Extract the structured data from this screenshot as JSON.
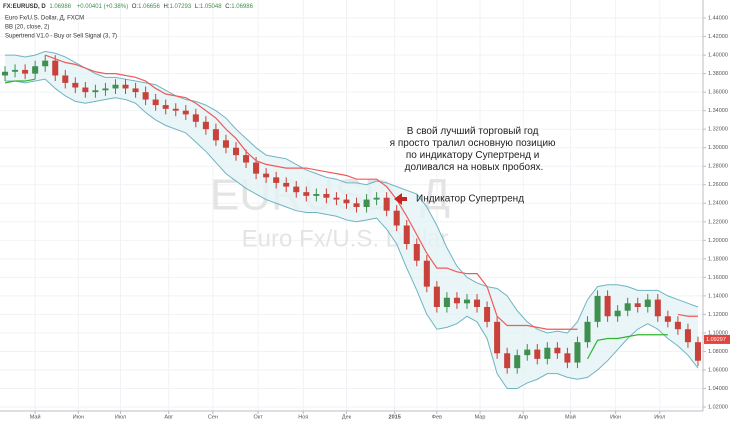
{
  "chart_data": {
    "type": "candlestick",
    "symbol": "FX:EURUSD, D",
    "last": 1.06986,
    "change": "+0.00401 (+0.38%)",
    "ohlc": [
      {
        "label": "O:",
        "value": 1.06656
      },
      {
        "label": "H:",
        "value": 1.07293
      },
      {
        "label": "L:",
        "value": 1.05048
      },
      {
        "label": "C:",
        "value": 1.06986
      }
    ],
    "legend_lines": [
      "Euro Fx/U.S. Dollar, Д, FXCM",
      "BB (20, close, 2)",
      "Supertrend V1.0 - Buy or Sell Signal (3, 7)"
    ],
    "watermark": [
      "EURUSD, Д",
      "Euro Fx/U.S. Dollar"
    ],
    "annotations": {
      "main": [
        "В свой лучший торговый год",
        "я просто тралил основную позицию",
        "по индикатору Супертренд и",
        "доливался на новых пробоях."
      ],
      "supertrend": "Индикатор Супертренд"
    },
    "grid": true,
    "xlim": [
      0,
      70
    ],
    "xticks": [
      {
        "value": 3.5,
        "label": "Май"
      },
      {
        "value": 7.8,
        "label": "Июн"
      },
      {
        "value": 12,
        "label": "Июл"
      },
      {
        "value": 16.8,
        "label": "Авг"
      },
      {
        "value": 21.2,
        "label": "Сен"
      },
      {
        "value": 25.7,
        "label": "Окт"
      },
      {
        "value": 30.2,
        "label": "Ноя"
      },
      {
        "value": 34.5,
        "label": "Дек"
      },
      {
        "value": 39.3,
        "label": "2015"
      },
      {
        "value": 43.5,
        "label": "Фев"
      },
      {
        "value": 47.8,
        "label": "Мар"
      },
      {
        "value": 52.1,
        "label": "Апр"
      },
      {
        "value": 56.8,
        "label": "Май"
      },
      {
        "value": 61.3,
        "label": "Июн"
      },
      {
        "value": 65.7,
        "label": "Июл"
      }
    ],
    "ylim": [
      1.0157,
      1.4595
    ],
    "yticks": [
      {
        "value": 1.02,
        "label": "1.02000"
      },
      {
        "value": 1.04,
        "label": "1.04000"
      },
      {
        "value": 1.06,
        "label": "1.06000"
      },
      {
        "value": 1.08,
        "label": "1.08000"
      },
      {
        "value": 1.1,
        "label": "1.10000"
      },
      {
        "value": 1.12,
        "label": "1.12000"
      },
      {
        "value": 1.14,
        "label": "1.14000"
      },
      {
        "value": 1.16,
        "label": "1.16000"
      },
      {
        "value": 1.18,
        "label": "1.18000"
      },
      {
        "value": 1.2,
        "label": "1.20000"
      },
      {
        "value": 1.22,
        "label": "1.22000"
      },
      {
        "value": 1.24,
        "label": "1.24000"
      },
      {
        "value": 1.26,
        "label": "1.26000"
      },
      {
        "value": 1.28,
        "label": "1.28000"
      },
      {
        "value": 1.3,
        "label": "1.30000"
      },
      {
        "value": 1.32,
        "label": "1.32000"
      },
      {
        "value": 1.34,
        "label": "1.34000"
      },
      {
        "value": 1.36,
        "label": "1.36000"
      },
      {
        "value": 1.38,
        "label": "1.38000"
      },
      {
        "value": 1.4,
        "label": "1.40000"
      },
      {
        "value": 1.42,
        "label": "1.42000"
      },
      {
        "value": 1.44,
        "label": "1.44000"
      }
    ],
    "last_price_label": 1.09297,
    "candles": {
      "up_color": "#3f8f4f",
      "down_color": "#c8413a",
      "open": [
        1.378,
        1.382,
        1.384,
        1.38,
        1.388,
        1.394,
        1.378,
        1.37,
        1.365,
        1.36,
        1.362,
        1.364,
        1.368,
        1.364,
        1.36,
        1.352,
        1.346,
        1.342,
        1.34,
        1.336,
        1.328,
        1.32,
        1.308,
        1.3,
        1.292,
        1.284,
        1.272,
        1.268,
        1.262,
        1.258,
        1.252,
        1.248,
        1.25,
        1.246,
        1.244,
        1.24,
        1.236,
        1.244,
        1.246,
        1.232,
        1.216,
        1.196,
        1.178,
        1.15,
        1.128,
        1.138,
        1.132,
        1.136,
        1.128,
        1.112,
        1.078,
        1.062,
        1.076,
        1.082,
        1.072,
        1.084,
        1.078,
        1.068,
        1.09,
        1.112,
        1.14,
        1.118,
        1.124,
        1.132,
        1.128,
        1.136,
        1.118,
        1.112,
        1.104,
        1.09
      ],
      "high": [
        1.388,
        1.39,
        1.39,
        1.394,
        1.4,
        1.4,
        1.384,
        1.376,
        1.371,
        1.368,
        1.37,
        1.374,
        1.374,
        1.37,
        1.366,
        1.358,
        1.352,
        1.348,
        1.346,
        1.342,
        1.334,
        1.326,
        1.314,
        1.306,
        1.298,
        1.29,
        1.278,
        1.274,
        1.268,
        1.264,
        1.258,
        1.256,
        1.256,
        1.252,
        1.25,
        1.246,
        1.25,
        1.252,
        1.252,
        1.238,
        1.222,
        1.202,
        1.184,
        1.156,
        1.144,
        1.144,
        1.142,
        1.142,
        1.134,
        1.118,
        1.084,
        1.082,
        1.088,
        1.088,
        1.09,
        1.09,
        1.084,
        1.096,
        1.118,
        1.146,
        1.146,
        1.13,
        1.138,
        1.138,
        1.142,
        1.142,
        1.124,
        1.118,
        1.11,
        1.096
      ],
      "low": [
        1.372,
        1.376,
        1.374,
        1.374,
        1.382,
        1.372,
        1.364,
        1.359,
        1.354,
        1.354,
        1.356,
        1.358,
        1.358,
        1.354,
        1.346,
        1.34,
        1.336,
        1.334,
        1.33,
        1.322,
        1.314,
        1.302,
        1.294,
        1.286,
        1.278,
        1.266,
        1.262,
        1.256,
        1.252,
        1.246,
        1.242,
        1.242,
        1.24,
        1.238,
        1.234,
        1.23,
        1.23,
        1.238,
        1.226,
        1.21,
        1.19,
        1.172,
        1.144,
        1.122,
        1.122,
        1.126,
        1.126,
        1.122,
        1.106,
        1.072,
        1.056,
        1.056,
        1.07,
        1.066,
        1.066,
        1.072,
        1.062,
        1.062,
        1.084,
        1.106,
        1.112,
        1.112,
        1.118,
        1.122,
        1.122,
        1.112,
        1.106,
        1.098,
        1.084,
        1.064
      ],
      "close": [
        1.382,
        1.384,
        1.38,
        1.388,
        1.394,
        1.378,
        1.37,
        1.365,
        1.36,
        1.362,
        1.364,
        1.368,
        1.364,
        1.36,
        1.352,
        1.346,
        1.342,
        1.34,
        1.336,
        1.328,
        1.32,
        1.308,
        1.3,
        1.292,
        1.284,
        1.272,
        1.268,
        1.262,
        1.258,
        1.252,
        1.248,
        1.25,
        1.246,
        1.244,
        1.24,
        1.236,
        1.244,
        1.246,
        1.232,
        1.216,
        1.196,
        1.178,
        1.15,
        1.128,
        1.138,
        1.132,
        1.136,
        1.128,
        1.112,
        1.078,
        1.062,
        1.076,
        1.082,
        1.072,
        1.084,
        1.078,
        1.068,
        1.09,
        1.112,
        1.14,
        1.118,
        1.124,
        1.132,
        1.128,
        1.136,
        1.118,
        1.112,
        1.104,
        1.09,
        1.07
      ]
    },
    "bands": {
      "color": "#6fb3c2",
      "fill": "#e3f3f5",
      "upper": [
        1.4,
        1.4,
        1.398,
        1.4,
        1.404,
        1.402,
        1.398,
        1.392,
        1.386,
        1.38,
        1.376,
        1.376,
        1.374,
        1.372,
        1.37,
        1.368,
        1.362,
        1.356,
        1.352,
        1.35,
        1.346,
        1.34,
        1.332,
        1.32,
        1.31,
        1.3,
        1.292,
        1.29,
        1.288,
        1.282,
        1.276,
        1.272,
        1.268,
        1.266,
        1.262,
        1.262,
        1.26,
        1.264,
        1.262,
        1.258,
        1.254,
        1.25,
        1.236,
        1.216,
        1.192,
        1.172,
        1.16,
        1.154,
        1.15,
        1.148,
        1.14,
        1.124,
        1.112,
        1.104,
        1.1,
        1.102,
        1.1,
        1.112,
        1.136,
        1.15,
        1.152,
        1.152,
        1.15,
        1.146,
        1.146,
        1.146,
        1.14,
        1.136,
        1.132,
        1.128
      ],
      "lower": [
        1.372,
        1.372,
        1.37,
        1.372,
        1.374,
        1.364,
        1.356,
        1.35,
        1.348,
        1.35,
        1.352,
        1.354,
        1.352,
        1.348,
        1.338,
        1.33,
        1.324,
        1.32,
        1.316,
        1.306,
        1.296,
        1.284,
        1.272,
        1.264,
        1.256,
        1.25,
        1.244,
        1.24,
        1.236,
        1.232,
        1.23,
        1.23,
        1.228,
        1.226,
        1.222,
        1.22,
        1.222,
        1.224,
        1.212,
        1.196,
        1.17,
        1.146,
        1.12,
        1.104,
        1.106,
        1.11,
        1.118,
        1.112,
        1.094,
        1.056,
        1.04,
        1.04,
        1.046,
        1.05,
        1.056,
        1.056,
        1.052,
        1.05,
        1.052,
        1.06,
        1.07,
        1.082,
        1.094,
        1.104,
        1.11,
        1.104,
        1.094,
        1.086,
        1.076,
        1.062
      ]
    },
    "supertrend": [
      {
        "color": "#f05a5a",
        "values": [
          null,
          null,
          null,
          null,
          1.4,
          1.396,
          1.392,
          1.39,
          1.386,
          1.382,
          1.38,
          1.38,
          1.378,
          1.376,
          1.372,
          1.364,
          1.358,
          1.356,
          1.354,
          1.348,
          1.34,
          1.332,
          1.32,
          1.31,
          1.296,
          1.286,
          1.282,
          1.28,
          1.278,
          1.278,
          1.278,
          1.276,
          1.274,
          1.272,
          1.27,
          1.266,
          1.266,
          1.266,
          1.258,
          1.244,
          1.226,
          1.206,
          1.186,
          1.17,
          1.17,
          1.166,
          1.164,
          1.164,
          1.15,
          1.118,
          1.108,
          1.108,
          1.108,
          1.106,
          1.104,
          1.104,
          1.104,
          1.104,
          null,
          null,
          null,
          null,
          null,
          null,
          null,
          null,
          null,
          1.12,
          1.118,
          1.118
        ]
      },
      {
        "color": "#2fb52f",
        "values": [
          1.37,
          1.372,
          1.372,
          1.374,
          null,
          null,
          null,
          null,
          null,
          null,
          null,
          null,
          null,
          null,
          null,
          null,
          null,
          null,
          null,
          null,
          null,
          null,
          null,
          null,
          null,
          null,
          null,
          null,
          null,
          null,
          null,
          null,
          null,
          null,
          null,
          null,
          null,
          null,
          null,
          null,
          null,
          null,
          null,
          null,
          null,
          null,
          null,
          null,
          null,
          null,
          null,
          null,
          null,
          null,
          null,
          null,
          null,
          null,
          1.072,
          1.092,
          1.094,
          1.094,
          1.096,
          1.098,
          1.098,
          1.098,
          1.098,
          null,
          null,
          null
        ]
      }
    ]
  }
}
